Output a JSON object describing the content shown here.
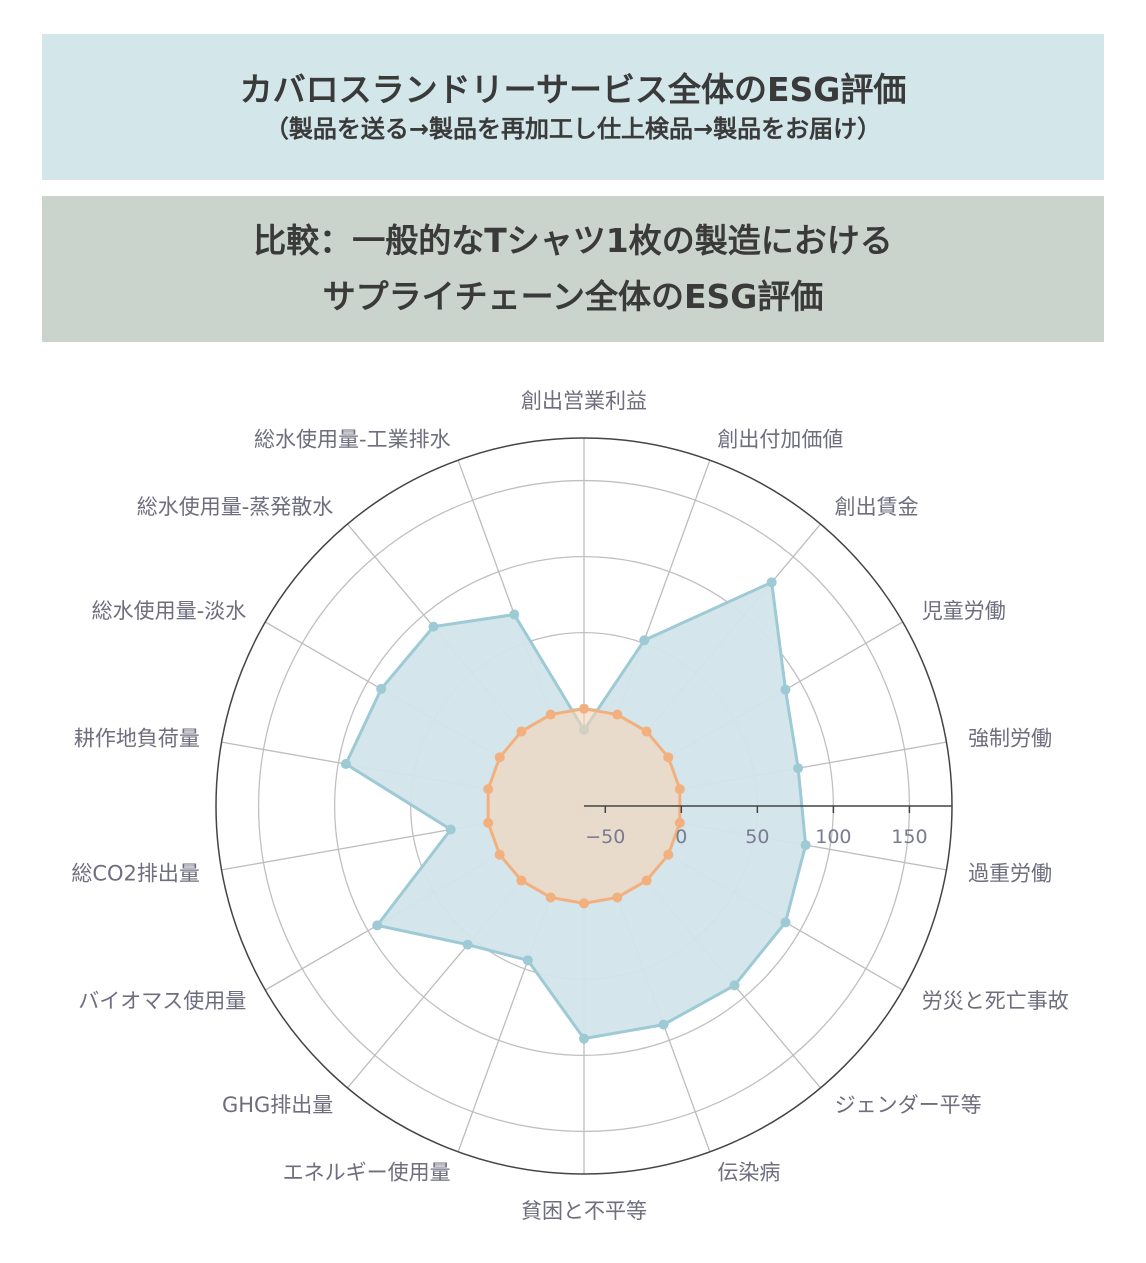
{
  "header": {
    "title": "カバロスランドリーサービス全体のESG評価",
    "subtitle": "（製品を送る→製品を再加工し仕上検品→製品をお届け）",
    "compare_line1": "比較：一般的なTシャツ1枚の製造における",
    "compare_line2": "サプライチェーン全体のESG評価"
  },
  "chart_data": {
    "type": "radar",
    "categories": [
      "創出営業利益",
      "創出付加価値",
      "創出賃金",
      "児童労働",
      "強制労働",
      "過重労働",
      "労災と死亡事故",
      "ジェンダー平等",
      "伝染病",
      "貧困と不平等",
      "エネルギー使用量",
      "GHG排出量",
      "バイオマス使用量",
      "総CO2排出量",
      "耕作地負荷量",
      "総水使用量-淡水",
      "総水使用量-蒸発散水",
      "総水使用量-工業排水"
    ],
    "series": [
      {
        "values": [
          -14,
          52,
          128,
          89,
          79,
          84,
          89,
          90,
          89,
          89,
          44,
          55,
          93,
          25,
          95,
          90,
          90,
          70
        ],
        "color": "#9dcad4",
        "fill": "#d2e5ea"
      },
      {
        "values": [
          0,
          0,
          0,
          0,
          0,
          0,
          0,
          0,
          0,
          0,
          0,
          0,
          0,
          0,
          0,
          0,
          0,
          0
        ],
        "color": "#f2b07f",
        "fill": "#f5d3b8"
      }
    ],
    "radial_ticks": [
      -50,
      0,
      50,
      100,
      150
    ],
    "radial_tick_labels": [
      "−50",
      "0",
      "50",
      "100",
      "150"
    ],
    "rlim": [
      -64,
      178
    ],
    "grid": true
  }
}
